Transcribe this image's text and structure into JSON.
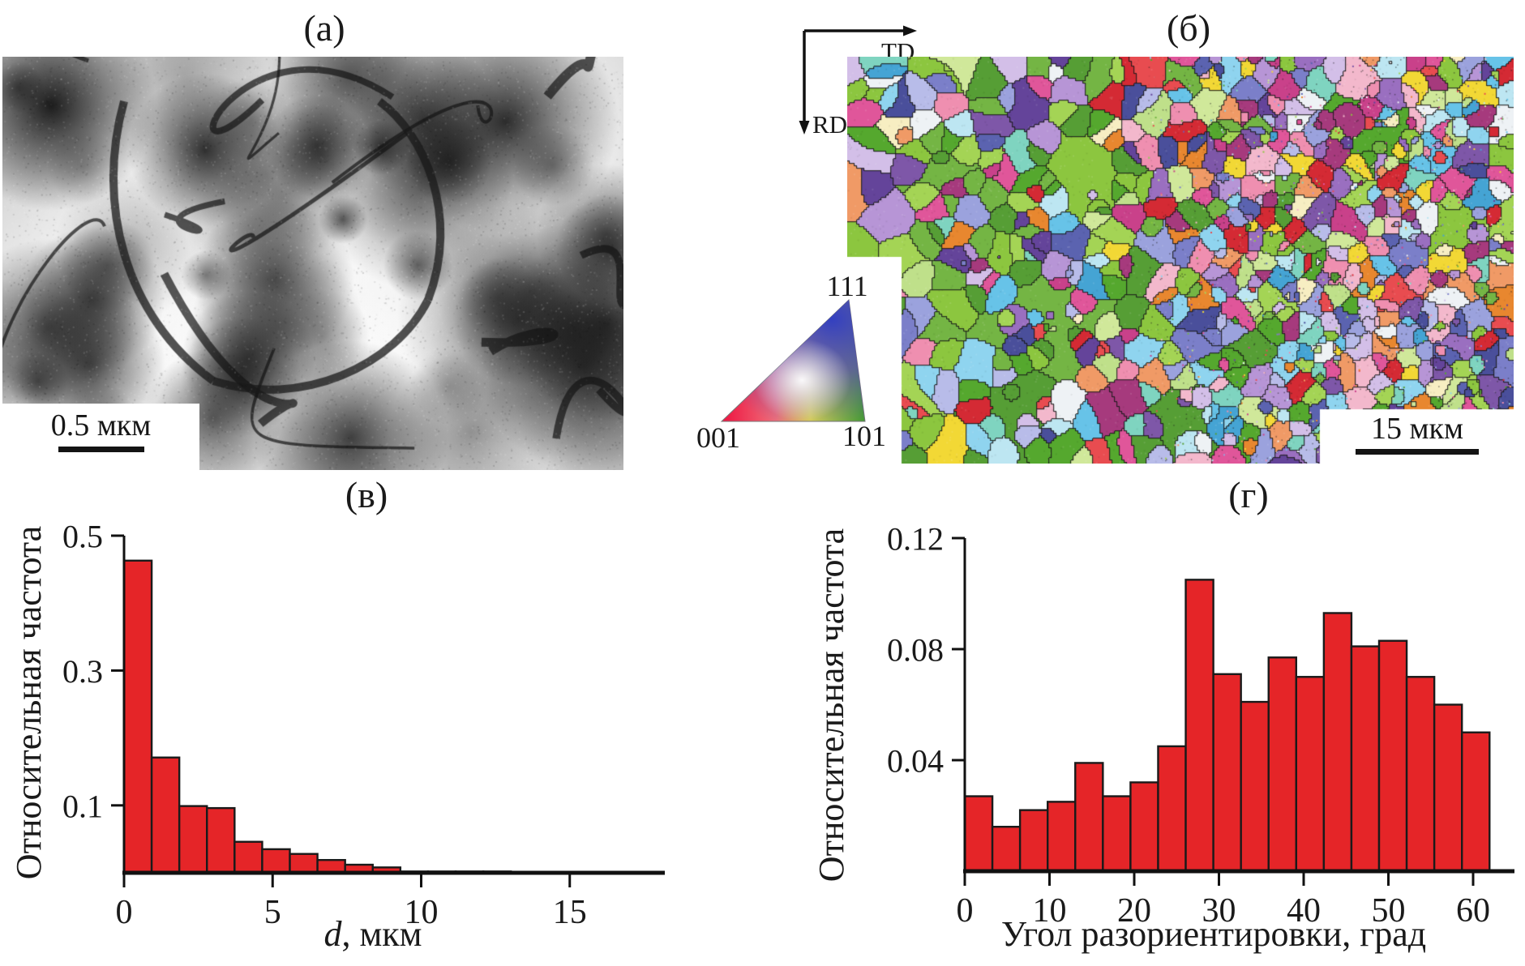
{
  "figure": {
    "panels": {
      "a": {
        "label": "(а)"
      },
      "b": {
        "label": "(б)"
      },
      "v": {
        "label": "(в)"
      },
      "g": {
        "label": "(г)"
      }
    }
  },
  "panel_a": {
    "description": "TEM bright-field micrograph",
    "scale_bar_label": "0.5 мкм"
  },
  "panel_b": {
    "description": "EBSD inverse-pole-figure orientation map",
    "td_label": "TD",
    "rd_label": "RD",
    "scale_bar_label": "15 мкм",
    "ipf": {
      "c001": "001",
      "c101": "101",
      "c111": "111"
    },
    "grain_palette": [
      "#74b544",
      "#8cc63f",
      "#569e35",
      "#a4d455",
      "#bfe08a",
      "#55a82e",
      "#d0e89a",
      "#5b63b0",
      "#7b7fc9",
      "#9ba2dd",
      "#b8bce9",
      "#4a4f9b",
      "#7e57a8",
      "#9a6fc0",
      "#b795d6",
      "#d3bfe8",
      "#64449a",
      "#c9418a",
      "#e0569a",
      "#a63a7d",
      "#ef8fb0",
      "#f3b8cc",
      "#e84c50",
      "#d42a34",
      "#f09a66",
      "#e8872f",
      "#f2d835",
      "#f7eec2",
      "#67c3e8",
      "#8fd4ef",
      "#45a4d4",
      "#bde6f2",
      "#7fd4c0",
      "#eef2f5"
    ]
  },
  "colors": {
    "bar_fill": "#e52528",
    "bar_stroke": "#1a1a1a",
    "axis": "#111111"
  },
  "chart_data": [
    {
      "id": "grain-size-histogram",
      "type": "bar",
      "panel": "в",
      "ylabel": "Относительная частота",
      "xlabel_parts": [
        {
          "t": "d",
          "italic": true
        },
        {
          "t": ", мкм",
          "italic": false
        }
      ],
      "bin_start": 0,
      "bin_width": 0.93,
      "values": [
        0.463,
        0.171,
        0.099,
        0.096,
        0.046,
        0.035,
        0.028,
        0.019,
        0.012,
        0.008,
        0.002,
        0.002,
        0.002,
        0.002
      ],
      "xticks": [
        0,
        5,
        10,
        15
      ],
      "xtick_labels": [
        "0",
        "5",
        "10",
        "15"
      ],
      "yticks": [
        0.1,
        0.3,
        0.5
      ],
      "ytick_labels": [
        "0.1",
        "0.3",
        "0.5"
      ],
      "xlim": [
        0,
        18.2
      ],
      "ylim": [
        0,
        0.5
      ],
      "grid": false,
      "legend": false
    },
    {
      "id": "misorientation-histogram",
      "type": "bar",
      "panel": "г",
      "ylabel": "Относительная частота",
      "xlabel_parts": [
        {
          "t": "Угол разориентировки, град",
          "italic": false
        }
      ],
      "bin_start": 0,
      "bin_width": 3.26,
      "values": [
        0.027,
        0.016,
        0.022,
        0.025,
        0.039,
        0.027,
        0.032,
        0.045,
        0.105,
        0.071,
        0.061,
        0.077,
        0.07,
        0.093,
        0.081,
        0.083,
        0.07,
        0.06,
        0.05
      ],
      "xticks": [
        0,
        10,
        20,
        30,
        40,
        50,
        60
      ],
      "xtick_labels": [
        "0",
        "10",
        "20",
        "30",
        "40",
        "50",
        "60"
      ],
      "yticks": [
        0.04,
        0.08,
        0.12
      ],
      "ytick_labels": [
        "0.04",
        "0.08",
        "0.12"
      ],
      "xlim": [
        0,
        64.9
      ],
      "ylim": [
        0,
        0.12
      ],
      "grid": false,
      "legend": false
    }
  ]
}
